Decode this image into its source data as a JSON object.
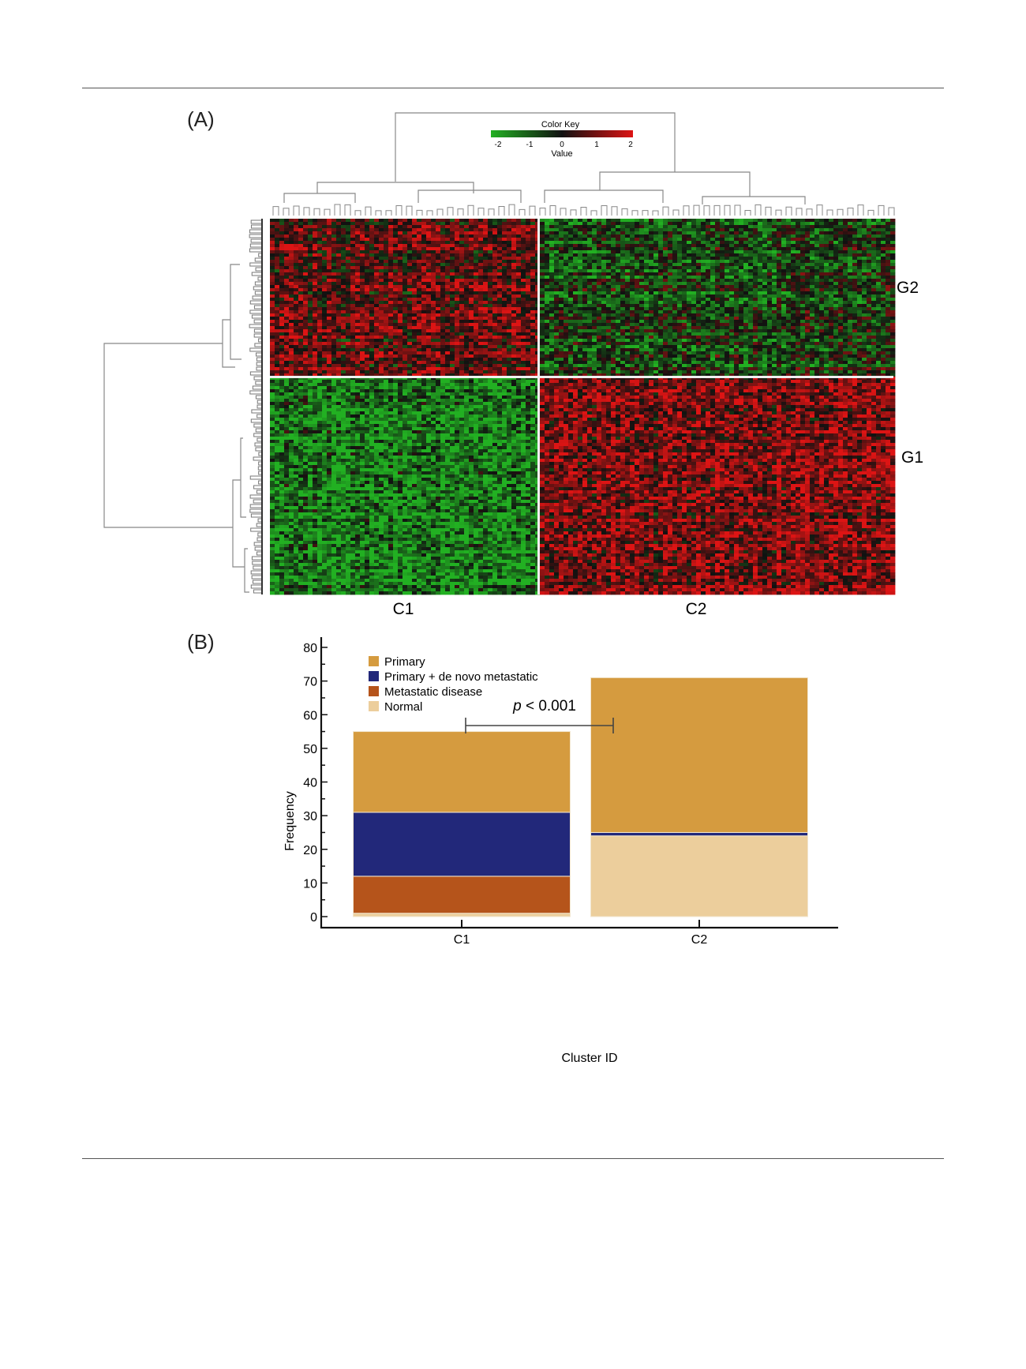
{
  "panels": {
    "a_label": "(A)",
    "b_label": "(B)"
  },
  "chart_data": [
    {
      "type": "heatmap",
      "panel": "(A)",
      "title": "",
      "color_key": {
        "title": "Color Key",
        "xlabel": "Value",
        "ticks": [
          "-2",
          "-1",
          "0",
          "1",
          "2"
        ],
        "range": [
          -2,
          2
        ],
        "colors": {
          "low": "#22b022",
          "mid": "#111111",
          "high": "#dd1414"
        }
      },
      "column_clusters": [
        "C1",
        "C2"
      ],
      "row_clusters": [
        "G2",
        "G1"
      ],
      "cluster_means": {
        "G2": {
          "C1": 0.7,
          "C2": -0.55
        },
        "G1": {
          "C1": -1.3,
          "C2": 1.05
        }
      }
    },
    {
      "type": "bar",
      "stacked": true,
      "panel": "(B)",
      "title": "",
      "xlabel": "Cluster ID",
      "ylabel": "Frequency",
      "ylim": [
        0,
        80
      ],
      "yticks": [
        0,
        10,
        20,
        30,
        40,
        50,
        60,
        70,
        80
      ],
      "categories": [
        "C1",
        "C2"
      ],
      "series": [
        {
          "name": "Normal",
          "color": "#ecce9c",
          "values": [
            1,
            24
          ]
        },
        {
          "name": "Metastatic disease",
          "color": "#b5541b",
          "values": [
            11,
            0
          ]
        },
        {
          "name": "Primary + de novo metastatic",
          "color": "#22287a",
          "values": [
            19,
            1
          ]
        },
        {
          "name": "Primary",
          "color": "#d59b3f",
          "values": [
            24,
            46
          ]
        }
      ],
      "legend": [
        "Primary",
        "Primary + de novo metastatic",
        "Metastatic disease",
        "Normal"
      ],
      "legend_position": "top-left",
      "annotation": {
        "italic": "p",
        "text": " < 0.001"
      }
    }
  ]
}
